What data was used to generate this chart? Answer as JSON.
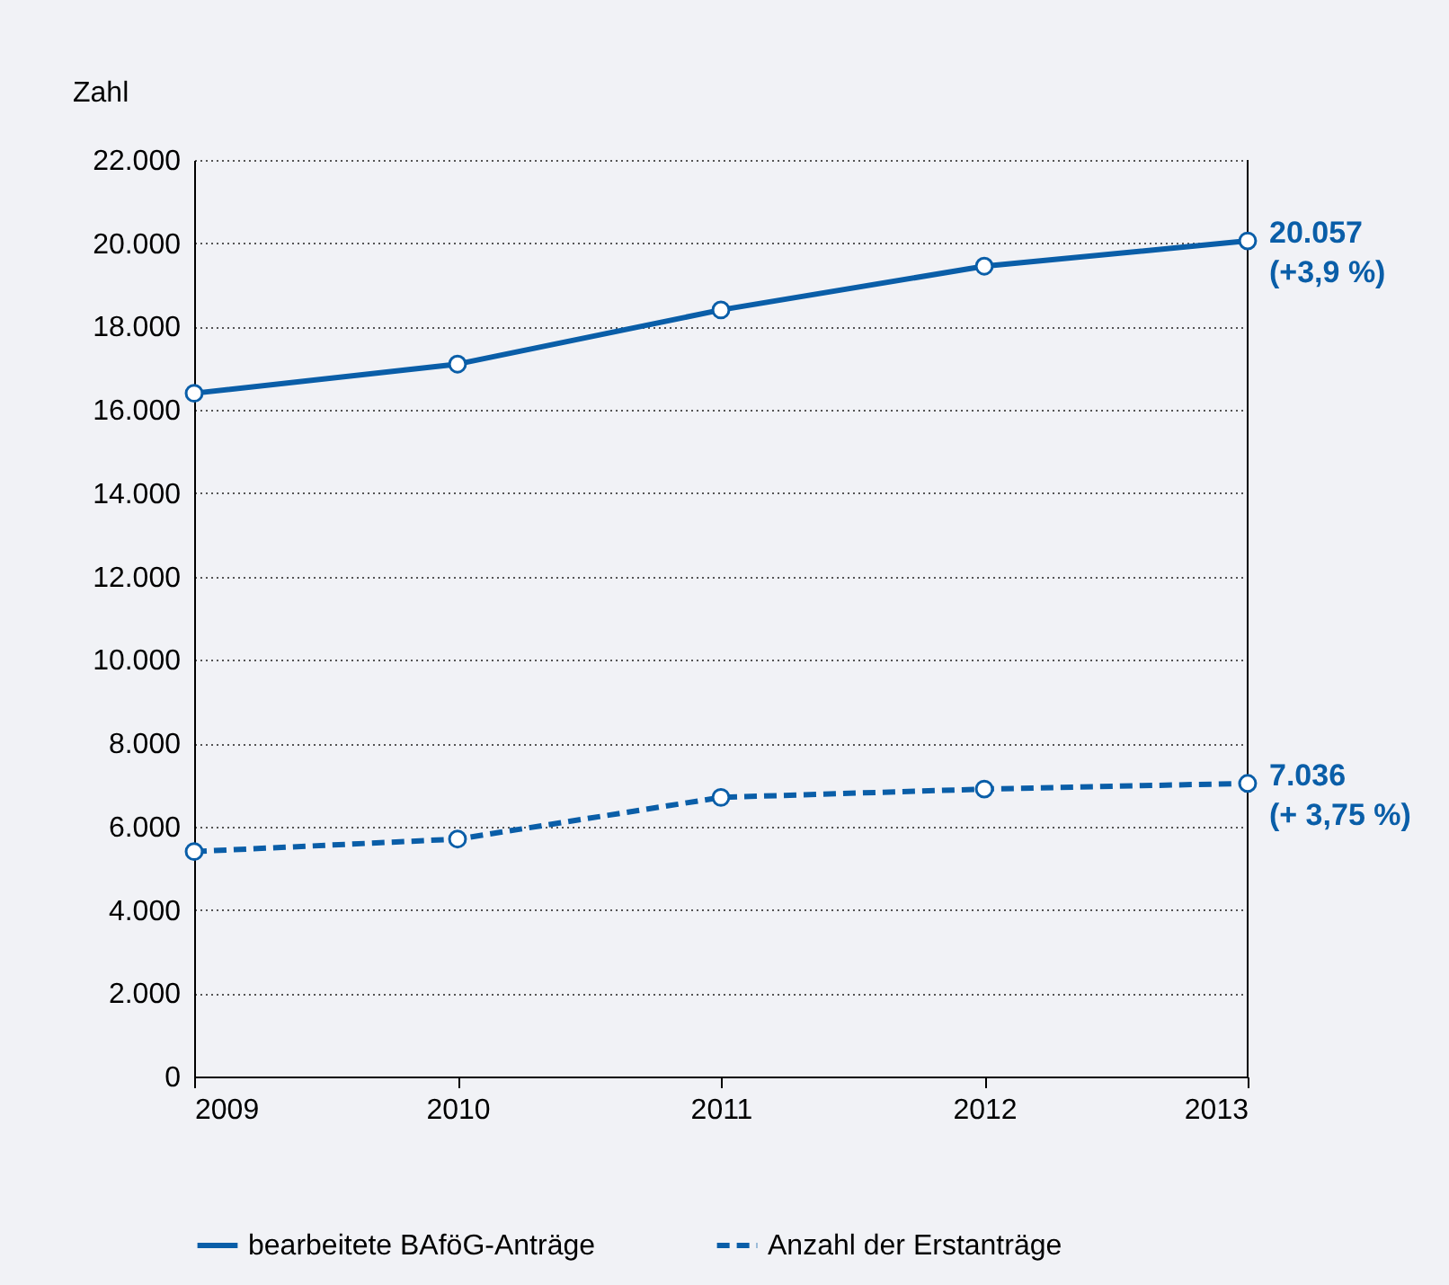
{
  "chart_data": {
    "type": "line",
    "ylabel": "Zahl",
    "x": [
      2009,
      2010,
      2011,
      2012,
      2013
    ],
    "xlim": [
      2009,
      2013
    ],
    "xticks": [
      2009,
      2010,
      2011,
      2012,
      2013
    ],
    "ylim": [
      0,
      22000
    ],
    "yticks": [
      0,
      {
        "value": 2000,
        "label": "2.000"
      },
      {
        "value": 4000,
        "label": "4.000"
      },
      {
        "value": 6000,
        "label": "6.000"
      },
      {
        "value": 8000,
        "label": "8.000"
      },
      {
        "value": 10000,
        "label": "10.000"
      },
      {
        "value": 12000,
        "label": "12.000"
      },
      {
        "value": 14000,
        "label": "14.000"
      },
      {
        "value": 16000,
        "label": "16.000"
      },
      {
        "value": 18000,
        "label": "18.000"
      },
      {
        "value": 20000,
        "label": "20.000"
      },
      {
        "value": 22000,
        "label": "22.000"
      }
    ],
    "series": [
      {
        "name": "bearbeitete BAföG-Anträge",
        "color": "#0a5ea8",
        "line_style": "solid",
        "values": [
          16400,
          17100,
          18400,
          19450,
          20057
        ]
      },
      {
        "name": "Anzahl der Erstanträge",
        "color": "#0a5ea8",
        "line_style": "dashed",
        "values": [
          5400,
          5700,
          6700,
          6900,
          7036
        ]
      }
    ],
    "annotations": [
      {
        "text": "20.057\n(+3,9 %)",
        "x": 2013,
        "y": 20057
      },
      {
        "text": "7.036\n(+ 3,75 %)",
        "x": 2013,
        "y": 7036
      }
    ],
    "grid": "y",
    "legend": "bottom",
    "marker": "circle"
  }
}
